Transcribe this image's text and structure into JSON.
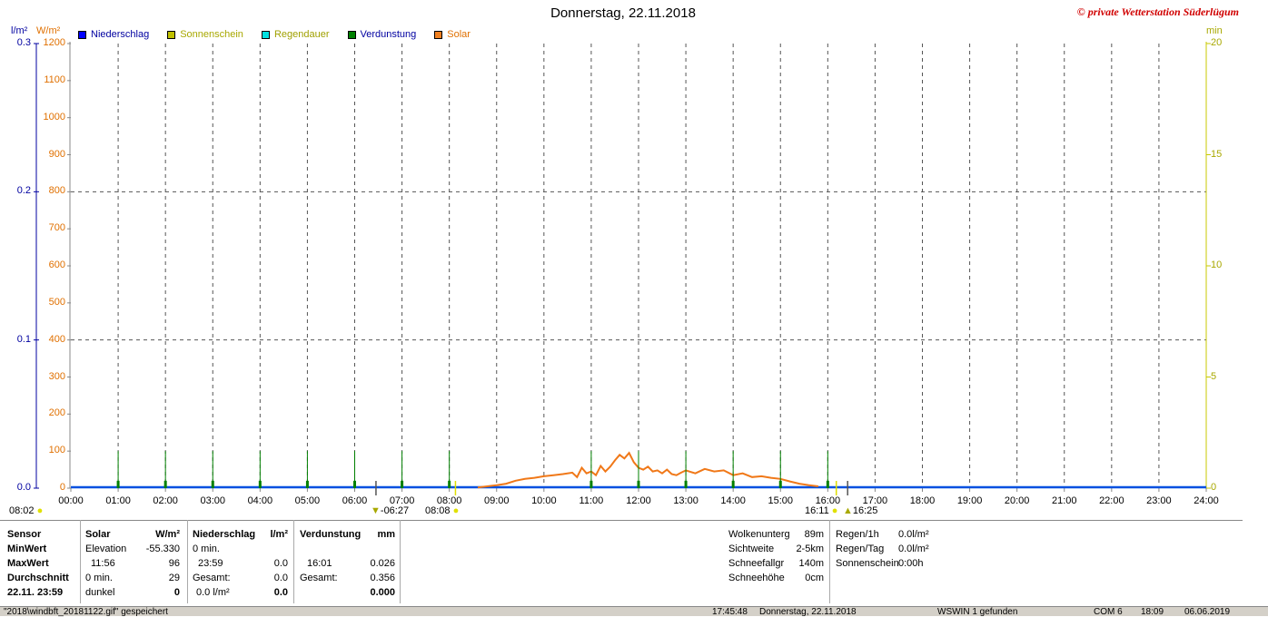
{
  "title": "Donnerstag, 22.11.2018",
  "copyright": "© private Wetterstation Süderlügum",
  "units": {
    "left1": "l/m²",
    "left2": "W/m²",
    "right": "min"
  },
  "legend": [
    {
      "label": "Niederschlag",
      "color": "#0000ff",
      "text_color": "#0000a0"
    },
    {
      "label": "Sonnenschein",
      "color": "#c0c000",
      "text_color": "#a8a800"
    },
    {
      "label": "Regendauer",
      "color": "#00e0e0",
      "text_color": "#a0a000"
    },
    {
      "label": "Verdunstung",
      "color": "#008000",
      "text_color": "#0000a0"
    },
    {
      "label": "Solar",
      "color": "#f08020",
      "text_color": "#e07000"
    }
  ],
  "chart_data": {
    "type": "line",
    "x_ticks": [
      "00:00",
      "01:00",
      "02:00",
      "03:00",
      "04:00",
      "05:00",
      "06:00",
      "07:00",
      "08:00",
      "09:00",
      "10:00",
      "11:00",
      "12:00",
      "13:00",
      "14:00",
      "15:00",
      "16:00",
      "17:00",
      "18:00",
      "19:00",
      "20:00",
      "21:00",
      "22:00",
      "23:00",
      "24:00"
    ],
    "y_left_niederschlag_ticks": [
      "0.0",
      "0.1",
      "0.2",
      "0.3"
    ],
    "y_left_solar_ticks": [
      "0",
      "100",
      "200",
      "300",
      "400",
      "500",
      "600",
      "700",
      "800",
      "900",
      "1000",
      "1100",
      "1200"
    ],
    "y_right_ticks": [
      "0",
      "5",
      "10",
      "15",
      "20"
    ],
    "ylim_solar": [
      0,
      1200
    ],
    "ylim_niederschlag": [
      0,
      0.3
    ],
    "ylim_minutes": [
      0,
      20
    ],
    "xlim_hours": [
      0,
      24
    ],
    "verdunstung_hours": [
      1,
      2,
      3,
      4,
      5,
      6,
      7,
      8,
      11,
      12,
      13,
      14,
      15,
      16
    ],
    "verdunstung_value_wm2": 100,
    "solar": {
      "hours": [
        8.6,
        8.8,
        9.0,
        9.2,
        9.4,
        9.6,
        9.8,
        10.0,
        10.2,
        10.4,
        10.6,
        10.7,
        10.8,
        10.9,
        11.0,
        11.1,
        11.2,
        11.3,
        11.4,
        11.5,
        11.6,
        11.7,
        11.8,
        11.9,
        12.0,
        12.1,
        12.2,
        12.3,
        12.4,
        12.5,
        12.6,
        12.7,
        12.8,
        12.9,
        13.0,
        13.2,
        13.4,
        13.6,
        13.8,
        14.0,
        14.2,
        14.4,
        14.6,
        14.8,
        15.0,
        15.2,
        15.4,
        15.6,
        15.8
      ],
      "values": [
        2,
        5,
        8,
        12,
        20,
        25,
        28,
        32,
        35,
        38,
        42,
        30,
        55,
        40,
        45,
        35,
        60,
        45,
        58,
        75,
        90,
        80,
        95,
        70,
        55,
        50,
        58,
        45,
        48,
        40,
        50,
        38,
        35,
        42,
        48,
        40,
        52,
        45,
        48,
        35,
        40,
        30,
        32,
        28,
        25,
        18,
        12,
        8,
        5
      ]
    },
    "niederschlag_value": 0.0,
    "grid": true
  },
  "sun_markers": {
    "sunrise_left": "08:02",
    "twilight_am": "06:27",
    "sunrise": "08:08",
    "sunset": "16:11",
    "twilight_pm": "16:25"
  },
  "panel": {
    "sensor_col": [
      "Sensor",
      "MinWert",
      "MaxWert",
      "Durchschnitt",
      "22.11.  23:59"
    ],
    "solar_header": "Solar",
    "solar_unit": "W/m²",
    "solar_rows": [
      {
        "a": "Elevation",
        "b": "-55.330"
      },
      {
        "a": "11:56",
        "b": "96"
      },
      {
        "a": "0 min.",
        "b": "29"
      },
      {
        "a": "dunkel",
        "b": "0"
      }
    ],
    "nied_header": "Niederschlag",
    "nied_unit": "l/m²",
    "nied_rows": [
      {
        "a": "0 min.",
        "b": ""
      },
      {
        "a": "23:59",
        "b": "0.0"
      },
      {
        "a": "Gesamt:",
        "b": "0.0"
      },
      {
        "a": "0.0 l/m²",
        "b": "0.0"
      }
    ],
    "verd_header": "Verdunstung",
    "verd_unit": "mm",
    "verd_rows": [
      {
        "a": "",
        "b": ""
      },
      {
        "a": "16:01",
        "b": "0.026"
      },
      {
        "a": "Gesamt:",
        "b": "0.356"
      },
      {
        "a": "",
        "b": "0.000"
      }
    ],
    "right_block1": [
      {
        "a": "Wolkenunterg",
        "b": "89m"
      },
      {
        "a": "Sichtweite",
        "b": "2-5km"
      },
      {
        "a": "Schneefallgr",
        "b": "140m"
      },
      {
        "a": "Schneehöhe",
        "b": "0cm"
      }
    ],
    "right_block2": [
      {
        "a": "Regen/1h",
        "b": "0.0l/m²"
      },
      {
        "a": "Regen/Tag",
        "b": "0.0l/m²"
      },
      {
        "a": "Sonnenschein",
        "b": "0:00h"
      }
    ]
  },
  "status_bar": {
    "file": "\"2018\\windbft_20181122.gif\" gespeichert",
    "time": "17:45:48",
    "date": "Donnerstag, 22.11.2018",
    "wswin": "WSWIN 1 gefunden",
    "com": "COM 6",
    "clock": "18:09",
    "today": "06.06.2019"
  }
}
